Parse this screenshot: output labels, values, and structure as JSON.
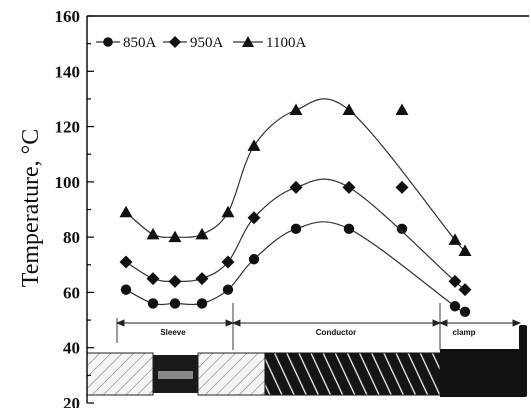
{
  "chart_data": {
    "type": "line",
    "ylabel": "Temperature, °C",
    "ylim": [
      20,
      160
    ],
    "yticks": [
      "20",
      "40",
      "60",
      "80",
      "100",
      "120",
      "140",
      "160"
    ],
    "x": [
      1,
      2,
      3,
      4,
      5,
      6,
      7,
      8,
      9,
      10,
      11
    ],
    "series": [
      {
        "name": "850A",
        "marker": "circle",
        "values": [
          61,
          56,
          56,
          56,
          61,
          72,
          83,
          83,
          83,
          55,
          53
        ]
      },
      {
        "name": "950A",
        "marker": "diamond",
        "values": [
          71,
          65,
          64,
          65,
          71,
          87,
          98,
          98,
          98,
          64,
          61
        ]
      },
      {
        "name": "1100A",
        "marker": "triangle",
        "values": [
          89,
          81,
          80,
          81,
          89,
          113,
          126,
          126,
          126,
          79,
          75
        ]
      }
    ],
    "regions": [
      {
        "label": "Sleeve"
      },
      {
        "label": "Conductor"
      },
      {
        "label": "clamp"
      }
    ],
    "colors": {
      "line": "#333333",
      "marker": "#111111",
      "hatch": "#1a1a1a"
    }
  }
}
